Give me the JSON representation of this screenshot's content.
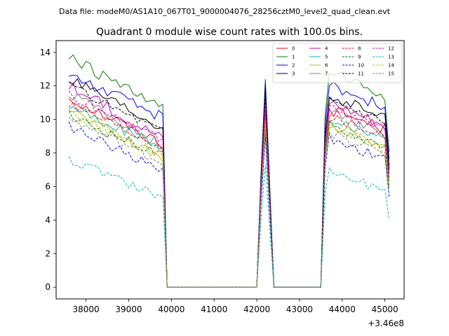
{
  "chart_data": {
    "type": "line",
    "suptitle": "Data file: modeM0/AS1A10_067T01_9000004076_28256cztM0_level2_quad_clean.evt",
    "title": "Quadrant 0 module wise count rates with 100.0s bins.",
    "xlabel": "",
    "ylabel": "",
    "x_offset_label": "+3.46e8",
    "xlim": [
      37300,
      45450
    ],
    "ylim": [
      -0.7,
      14.7
    ],
    "x_ticks": [
      38000,
      39000,
      40000,
      41000,
      42000,
      43000,
      44000,
      45000
    ],
    "y_ticks": [
      0,
      2,
      4,
      6,
      8,
      10,
      12,
      14
    ],
    "grid": false,
    "legend_position": "upper right",
    "legend_ncol": 4,
    "segment_x": {
      "seg1": [
        37600,
        37700,
        37800,
        37900,
        38000,
        38100,
        38200,
        38300,
        38400,
        38500,
        38600,
        38700,
        38800,
        38900,
        39000,
        39100,
        39200,
        39300,
        39400,
        39500,
        39600,
        39700,
        39800
      ],
      "gap1": [
        39900,
        42000
      ],
      "peak": [
        42100,
        42200,
        42300
      ],
      "gap2": [
        42400,
        43500
      ],
      "seg2": [
        43600,
        43700,
        43800,
        43900,
        44000,
        44100,
        44200,
        44300,
        44400,
        44500,
        44600,
        44700,
        44800,
        44900,
        45000,
        45100
      ]
    },
    "series": [
      {
        "name": "0",
        "color": "#ff0000",
        "dashed": false,
        "base1": 11.3,
        "end1": 8.6,
        "peak": 11.0,
        "base2": 10.6,
        "end2": 9.4,
        "jitter": 0.35
      },
      {
        "name": "1",
        "color": "#008000",
        "dashed": false,
        "base1": 13.7,
        "end1": 10.6,
        "peak": 12.4,
        "base2": 12.8,
        "end2": 11.2,
        "jitter": 0.35
      },
      {
        "name": "2",
        "color": "#0000ff",
        "dashed": false,
        "base1": 12.7,
        "end1": 10.1,
        "peak": 12.2,
        "base2": 12.1,
        "end2": 10.6,
        "jitter": 0.35
      },
      {
        "name": "3",
        "color": "#000000",
        "dashed": false,
        "base1": 12.4,
        "end1": 9.4,
        "peak": 11.8,
        "base2": 11.4,
        "end2": 10.0,
        "jitter": 0.35
      },
      {
        "name": "4",
        "color": "#c000c0",
        "dashed": false,
        "base1": 12.0,
        "end1": 8.9,
        "peak": 11.4,
        "base2": 11.1,
        "end2": 9.6,
        "jitter": 0.35
      },
      {
        "name": "5",
        "color": "#00bfbf",
        "dashed": false,
        "base1": 10.8,
        "end1": 8.3,
        "peak": 10.3,
        "base2": 10.1,
        "end2": 8.8,
        "jitter": 0.3
      },
      {
        "name": "6",
        "color": "#bfbf00",
        "dashed": false,
        "base1": 10.7,
        "end1": 7.6,
        "peak": 10.0,
        "base2": 9.7,
        "end2": 8.3,
        "jitter": 0.3
      },
      {
        "name": "7",
        "color": "#808080",
        "dashed": false,
        "base1": 11.6,
        "end1": 8.4,
        "peak": 10.9,
        "base2": 10.4,
        "end2": 9.1,
        "jitter": 0.3
      },
      {
        "name": "8",
        "color": "#ff0000",
        "dashed": true,
        "base1": 11.0,
        "end1": 8.4,
        "peak": 10.6,
        "base2": 10.2,
        "end2": 9.0,
        "jitter": 0.3
      },
      {
        "name": "9",
        "color": "#008000",
        "dashed": true,
        "base1": 10.2,
        "end1": 7.8,
        "peak": 9.6,
        "base2": 9.6,
        "end2": 8.3,
        "jitter": 0.3
      },
      {
        "name": "10",
        "color": "#0000ff",
        "dashed": true,
        "base1": 9.6,
        "end1": 6.9,
        "peak": 9.0,
        "base2": 8.9,
        "end2": 7.5,
        "jitter": 0.3
      },
      {
        "name": "11",
        "color": "#000000",
        "dashed": true,
        "base1": 12.0,
        "end1": 9.3,
        "peak": 11.5,
        "base2": 11.2,
        "end2": 9.8,
        "jitter": 0.3
      },
      {
        "name": "12",
        "color": "#c000c0",
        "dashed": true,
        "base1": 11.5,
        "end1": 8.8,
        "peak": 10.9,
        "base2": 10.7,
        "end2": 9.3,
        "jitter": 0.3
      },
      {
        "name": "13",
        "color": "#00bfbf",
        "dashed": true,
        "base1": 7.6,
        "end1": 5.4,
        "peak": 7.3,
        "base2": 7.0,
        "end2": 5.6,
        "jitter": 0.3
      },
      {
        "name": "14",
        "color": "#bfbf00",
        "dashed": true,
        "base1": 10.4,
        "end1": 7.8,
        "peak": 9.8,
        "base2": 9.6,
        "end2": 8.2,
        "jitter": 0.3
      },
      {
        "name": "15",
        "color": "#808080",
        "dashed": true,
        "base1": 10.0,
        "end1": 7.4,
        "peak": 9.4,
        "base2": 9.2,
        "end2": 7.8,
        "jitter": 0.3
      }
    ]
  }
}
